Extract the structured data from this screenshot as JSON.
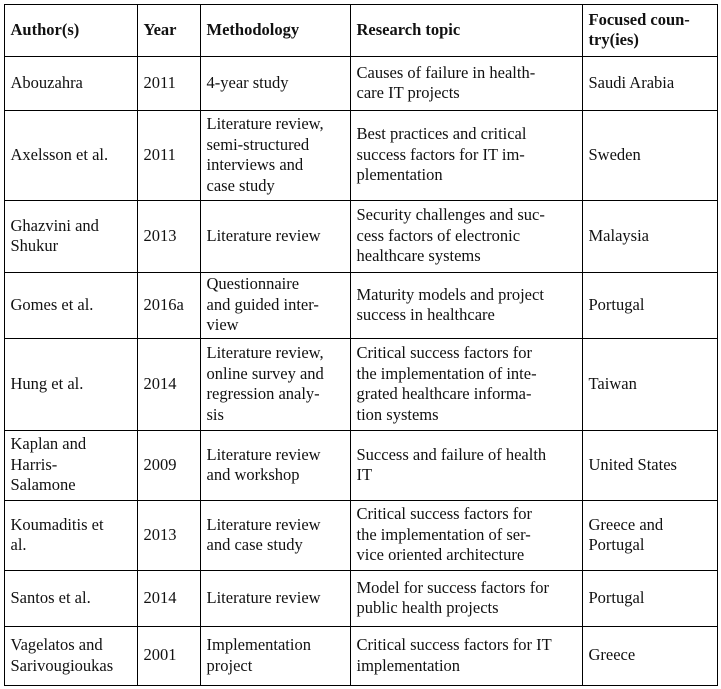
{
  "table": {
    "header": [
      [
        "Author(s)"
      ],
      [
        "Year"
      ],
      [
        "Methodology"
      ],
      [
        "Research topic"
      ],
      [
        "Focused coun-",
        "try(ies)"
      ]
    ],
    "rows": [
      [
        [
          "Abouzahra"
        ],
        [
          "2011"
        ],
        [
          "4-year study"
        ],
        [
          "Causes of failure in health-",
          "care IT projects"
        ],
        [
          "Saudi Arabia"
        ]
      ],
      [
        [
          "Axelsson et al."
        ],
        [
          "2011"
        ],
        [
          "Literature review,",
          "semi-structured",
          "interviews and",
          "case study"
        ],
        [
          "Best practices and critical",
          "success factors for IT im-",
          "plementation"
        ],
        [
          "Sweden"
        ]
      ],
      [
        [
          "Ghazvini and",
          "Shukur"
        ],
        [
          "2013"
        ],
        [
          "Literature review"
        ],
        [
          "Security challenges and suc-",
          "cess factors of electronic",
          "healthcare systems"
        ],
        [
          "Malaysia"
        ]
      ],
      [
        [
          "Gomes et al."
        ],
        [
          "2016a"
        ],
        [
          "Questionnaire",
          "and guided inter-",
          "view"
        ],
        [
          "Maturity models and project",
          "success in healthcare"
        ],
        [
          "Portugal"
        ]
      ],
      [
        [
          "Hung et al."
        ],
        [
          "2014"
        ],
        [
          "Literature review,",
          "online survey and",
          "regression analy-",
          "sis"
        ],
        [
          "Critical success factors for",
          "the implementation of inte-",
          "grated healthcare informa-",
          "tion systems"
        ],
        [
          "Taiwan"
        ]
      ],
      [
        [
          "Kaplan and",
          "Harris-",
          "Salamone"
        ],
        [
          "2009"
        ],
        [
          "Literature review",
          "and workshop"
        ],
        [
          "Success and failure of health",
          "IT"
        ],
        [
          "United States"
        ]
      ],
      [
        [
          "Koumaditis et",
          "al."
        ],
        [
          "2013"
        ],
        [
          "Literature review",
          "and case study"
        ],
        [
          "Critical success factors for",
          "the implementation of ser-",
          "vice oriented architecture"
        ],
        [
          "Greece and",
          "Portugal"
        ]
      ],
      [
        [
          "Santos et al."
        ],
        [
          "2014"
        ],
        [
          "Literature review"
        ],
        [
          "Model for success factors for",
          "public health projects"
        ],
        [
          "Portugal"
        ]
      ],
      [
        [
          "Vagelatos and",
          "Sarivougioukas"
        ],
        [
          "2001"
        ],
        [
          "Implementation",
          "project"
        ],
        [
          "Critical success factors for IT",
          "implementation"
        ],
        [
          "Greece"
        ]
      ]
    ]
  }
}
